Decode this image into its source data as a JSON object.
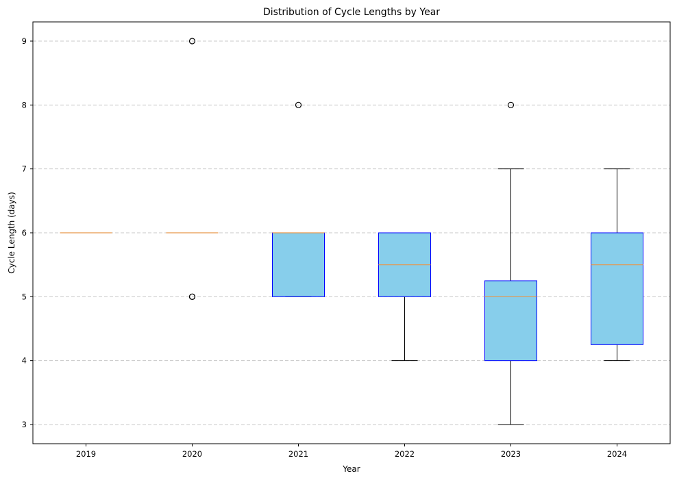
{
  "chart_data": {
    "type": "box",
    "title": "Distribution of Cycle Lengths by Year",
    "xlabel": "Year",
    "ylabel": "Cycle Length (days)",
    "categories": [
      "2019",
      "2020",
      "2021",
      "2022",
      "2023",
      "2024"
    ],
    "ylim": [
      2.7,
      9.3
    ],
    "yticks": [
      3,
      4,
      5,
      6,
      7,
      8,
      9
    ],
    "ytick_labels": [
      "3",
      "4",
      "5",
      "6",
      "7",
      "8",
      "9"
    ],
    "grid": "y-dashed",
    "boxes": [
      {
        "category": "2019",
        "whisker_low": 6,
        "q1": 6,
        "median": 6,
        "q3": 6,
        "whisker_high": 6,
        "outliers": []
      },
      {
        "category": "2020",
        "whisker_low": 6,
        "q1": 6,
        "median": 6,
        "q3": 6,
        "whisker_high": 6,
        "outliers": [
          9,
          5,
          5
        ]
      },
      {
        "category": "2021",
        "whisker_low": 5,
        "q1": 5,
        "median": 6,
        "q3": 6,
        "whisker_high": 6,
        "outliers": [
          8
        ]
      },
      {
        "category": "2022",
        "whisker_low": 4,
        "q1": 5,
        "median": 5.5,
        "q3": 6,
        "whisker_high": 6,
        "outliers": []
      },
      {
        "category": "2023",
        "whisker_low": 3,
        "q1": 4,
        "median": 5,
        "q3": 5.25,
        "whisker_high": 7,
        "outliers": [
          8
        ]
      },
      {
        "category": "2024",
        "whisker_low": 4,
        "q1": 4.25,
        "median": 5.5,
        "q3": 6,
        "whisker_high": 7,
        "outliers": []
      }
    ],
    "colors": {
      "box_fill": "#87ceeb",
      "box_edge": "#0000ff",
      "median": "#e8964a",
      "whisker": "#000000",
      "grid": "#c8c8c8"
    }
  }
}
